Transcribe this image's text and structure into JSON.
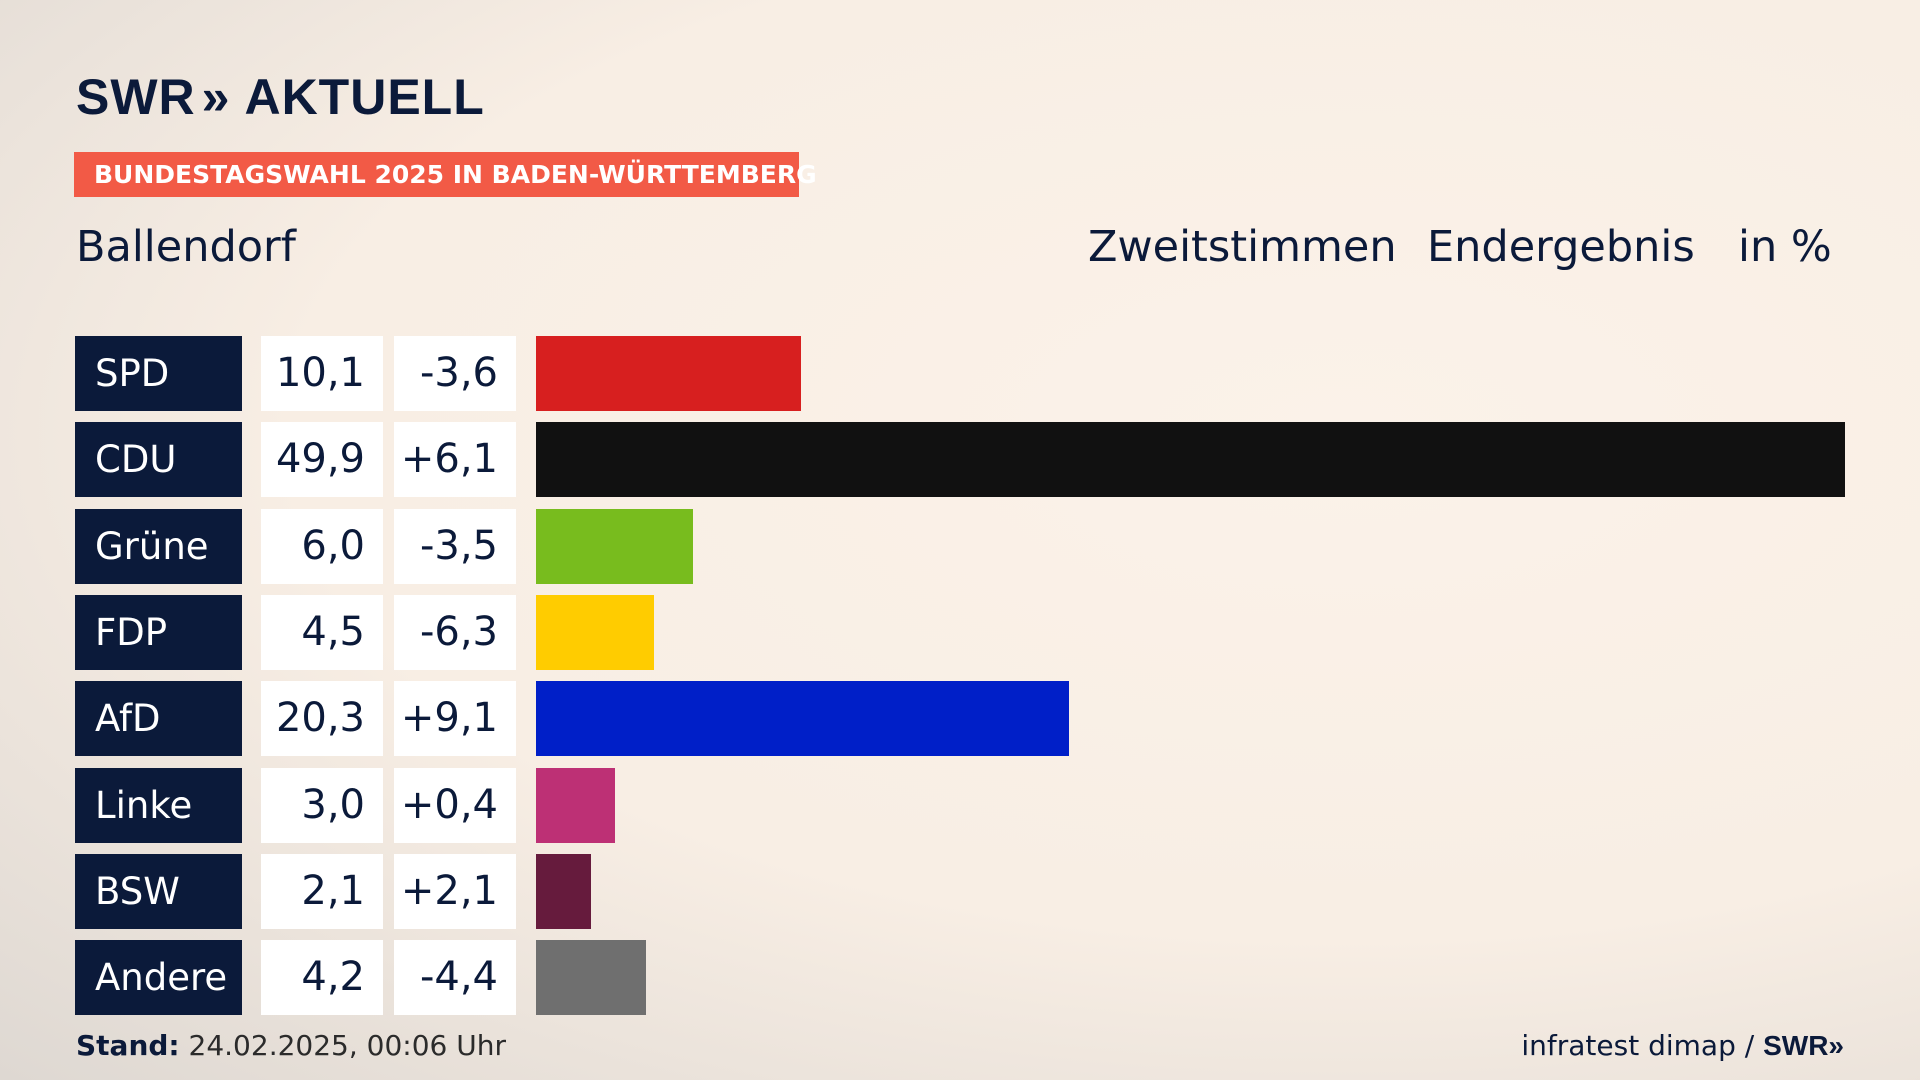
{
  "brand": {
    "logo_left": "SWR",
    "logo_chevrons": "»",
    "logo_right": "AKTUELL"
  },
  "banner": "BUNDESTAGSWAHL 2025 IN BADEN-WÜRTTEMBERG",
  "place": "Ballendorf",
  "headers": {
    "vote_type": "Zweitstimmen",
    "status": "Endergebnis",
    "unit": "in %"
  },
  "footer": {
    "stand_label": "Stand:",
    "stand_value": "24.02.2025, 00:06 Uhr",
    "source": "infratest dimap /",
    "source_brand": "SWR»"
  },
  "chart_data": {
    "type": "bar",
    "orientation": "horizontal",
    "unit": "%",
    "xlim": [
      0,
      49.9
    ],
    "categories": [
      "SPD",
      "CDU",
      "Grüne",
      "FDP",
      "AfD",
      "Linke",
      "BSW",
      "Andere"
    ],
    "values": [
      10.1,
      49.9,
      6.0,
      4.5,
      20.3,
      3.0,
      2.1,
      4.2
    ],
    "value_labels": [
      "10,1",
      "49,9",
      "6,0",
      "4,5",
      "20,3",
      "3,0",
      "2,1",
      "4,2"
    ],
    "diff_labels": [
      "-3,6",
      "+6,1",
      "-3,5",
      "-6,3",
      "+9,1",
      "+0,4",
      "+2,1",
      "-4,4"
    ],
    "diffs": [
      -3.6,
      6.1,
      -3.5,
      -6.3,
      9.1,
      0.4,
      2.1,
      -4.4
    ],
    "colors": [
      "#d71f1f",
      "#111111",
      "#78bc1e",
      "#ffcc00",
      "#001fc8",
      "#bd3075",
      "#661b3d",
      "#6f6f6f"
    ]
  }
}
